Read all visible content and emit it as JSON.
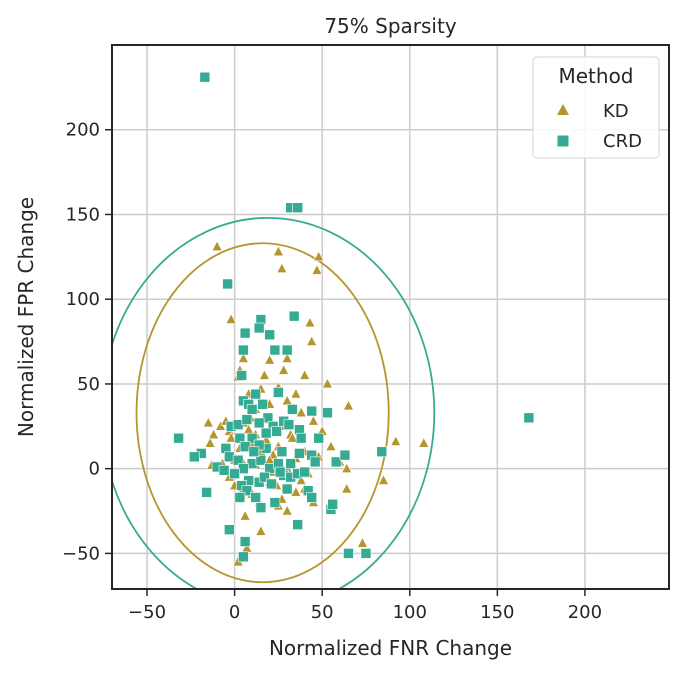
{
  "chart_data": {
    "type": "scatter",
    "title": "75% Sparsity",
    "xlabel": "Normalized FNR Change",
    "ylabel": "Normalized FPR Change",
    "xlim": [
      -70,
      248
    ],
    "ylim": [
      -71,
      250
    ],
    "xticks": [
      -50,
      0,
      50,
      100,
      150,
      200
    ],
    "yticks": [
      -50,
      0,
      50,
      100,
      150,
      200
    ],
    "xtick_labels": [
      "−50",
      "0",
      "50",
      "100",
      "150",
      "200"
    ],
    "ytick_labels": [
      "−50",
      "0",
      "50",
      "100",
      "150",
      "200"
    ],
    "grid": true,
    "legend": {
      "title": "Method",
      "placement": "top-right",
      "entries": [
        {
          "label": "KD",
          "marker": "triangle",
          "color": "#b5962e"
        },
        {
          "label": "CRD",
          "marker": "square",
          "color": "#35ab93"
        }
      ]
    },
    "series": [
      {
        "name": "KD",
        "marker": "triangle",
        "color": "#b5962e",
        "points": [
          [
            -10,
            131
          ],
          [
            -2,
            88
          ],
          [
            25,
            128
          ],
          [
            27,
            118
          ],
          [
            48,
            125
          ],
          [
            47,
            117
          ],
          [
            43,
            86
          ],
          [
            44,
            75
          ],
          [
            2,
            54
          ],
          [
            3,
            58
          ],
          [
            30,
            65
          ],
          [
            28,
            58
          ],
          [
            20,
            64
          ],
          [
            15,
            47
          ],
          [
            53,
            50
          ],
          [
            30,
            40
          ],
          [
            5,
            27
          ],
          [
            8,
            23
          ],
          [
            12,
            20
          ],
          [
            18,
            17
          ],
          [
            25,
            13
          ],
          [
            10,
            14
          ],
          [
            22,
            8
          ],
          [
            35,
            6
          ],
          [
            40,
            10
          ],
          [
            32,
            20
          ],
          [
            28,
            25
          ],
          [
            -15,
            27
          ],
          [
            -8,
            25
          ],
          [
            -5,
            28
          ],
          [
            -3,
            22
          ],
          [
            -12,
            20
          ],
          [
            -14,
            15
          ],
          [
            -13,
            2
          ],
          [
            -7,
            3
          ],
          [
            0,
            5
          ],
          [
            5,
            3
          ],
          [
            12,
            2
          ],
          [
            20,
            5
          ],
          [
            26,
            3
          ],
          [
            30,
            0
          ],
          [
            35,
            -3
          ],
          [
            38,
            -7
          ],
          [
            42,
            -3
          ],
          [
            -3,
            -5
          ],
          [
            0,
            -10
          ],
          [
            5,
            -12
          ],
          [
            10,
            -15
          ],
          [
            14,
            -20
          ],
          [
            20,
            -8
          ],
          [
            24,
            -10
          ],
          [
            27,
            -18
          ],
          [
            35,
            -14
          ],
          [
            40,
            -12
          ],
          [
            45,
            -20
          ],
          [
            30,
            -25
          ],
          [
            25,
            -22
          ],
          [
            6,
            -28
          ],
          [
            15,
            -37
          ],
          [
            7,
            -47
          ],
          [
            2,
            -55
          ],
          [
            65,
            37
          ],
          [
            64,
            -12
          ],
          [
            64,
            0
          ],
          [
            85,
            -7
          ],
          [
            92,
            16
          ],
          [
            108,
            15
          ],
          [
            60,
            4
          ],
          [
            55,
            13
          ],
          [
            50,
            22
          ],
          [
            45,
            28
          ],
          [
            38,
            33
          ],
          [
            33,
            18
          ],
          [
            18,
            29
          ],
          [
            12,
            35
          ],
          [
            9,
            30
          ],
          [
            15,
            10
          ],
          [
            22,
            -2
          ],
          [
            3,
            12
          ],
          [
            -2,
            18
          ],
          [
            8,
            44
          ],
          [
            20,
            38
          ],
          [
            25,
            48
          ],
          [
            35,
            44
          ],
          [
            40,
            55
          ],
          [
            17,
            55
          ],
          [
            5,
            65
          ],
          [
            48,
            7
          ],
          [
            73,
            -44
          ]
        ]
      },
      {
        "name": "CRD",
        "marker": "square",
        "color": "#35ab93",
        "points": [
          [
            -17,
            231
          ],
          [
            32,
            154
          ],
          [
            36,
            154
          ],
          [
            -4,
            109
          ],
          [
            15,
            88
          ],
          [
            14,
            83
          ],
          [
            34,
            90
          ],
          [
            6,
            80
          ],
          [
            20,
            79
          ],
          [
            23,
            70
          ],
          [
            30,
            70
          ],
          [
            5,
            70
          ],
          [
            4,
            55
          ],
          [
            25,
            45
          ],
          [
            12,
            44
          ],
          [
            5,
            40
          ],
          [
            8,
            38
          ],
          [
            16,
            38
          ],
          [
            10,
            35
          ],
          [
            33,
            35
          ],
          [
            44,
            34
          ],
          [
            53,
            33
          ],
          [
            19,
            30
          ],
          [
            28,
            28
          ],
          [
            22,
            25
          ],
          [
            14,
            27
          ],
          [
            31,
            26
          ],
          [
            -2,
            25
          ],
          [
            2,
            26
          ],
          [
            24,
            22
          ],
          [
            37,
            23
          ],
          [
            48,
            18
          ],
          [
            3,
            18
          ],
          [
            10,
            18
          ],
          [
            6,
            13
          ],
          [
            18,
            12
          ],
          [
            27,
            10
          ],
          [
            44,
            8
          ],
          [
            37,
            9
          ],
          [
            -5,
            12
          ],
          [
            -3,
            7
          ],
          [
            -19,
            9
          ],
          [
            -23,
            7
          ],
          [
            -32,
            18
          ],
          [
            2,
            5
          ],
          [
            10,
            3
          ],
          [
            15,
            5
          ],
          [
            20,
            0
          ],
          [
            25,
            3
          ],
          [
            28,
            -4
          ],
          [
            32,
            -5
          ],
          [
            36,
            -3
          ],
          [
            40,
            -2
          ],
          [
            -10,
            1
          ],
          [
            5,
            0
          ],
          [
            0,
            -3
          ],
          [
            8,
            -7
          ],
          [
            4,
            -10
          ],
          [
            7,
            -13
          ],
          [
            14,
            -8
          ],
          [
            17,
            -5
          ],
          [
            21,
            -9
          ],
          [
            30,
            -12
          ],
          [
            42,
            -13
          ],
          [
            -16,
            -14
          ],
          [
            3,
            -17
          ],
          [
            12,
            -17
          ],
          [
            23,
            -20
          ],
          [
            44,
            -17
          ],
          [
            55,
            -24
          ],
          [
            56,
            -21
          ],
          [
            15,
            -23
          ],
          [
            36,
            -33
          ],
          [
            -3,
            -36
          ],
          [
            6,
            -43
          ],
          [
            5,
            -52
          ],
          [
            58,
            4
          ],
          [
            63,
            8
          ],
          [
            65,
            -50
          ],
          [
            75,
            -50
          ],
          [
            84,
            10
          ],
          [
            168,
            30
          ],
          [
            38,
            18
          ],
          [
            46,
            4
          ],
          [
            14,
            14
          ],
          [
            7,
            29
          ],
          [
            32,
            3
          ],
          [
            26,
            -2
          ],
          [
            -6,
            -1
          ],
          [
            18,
            21
          ],
          [
            11,
            10
          ]
        ]
      }
    ],
    "ellipses": [
      {
        "series": "KD",
        "color": "#b5962e",
        "center": [
          16,
          33
        ],
        "radius_x": 72,
        "radius_y": 100
      },
      {
        "series": "CRD",
        "color": "#35ab93",
        "center": [
          19,
          33
        ],
        "radius_x": 95,
        "radius_y": 115
      }
    ]
  }
}
